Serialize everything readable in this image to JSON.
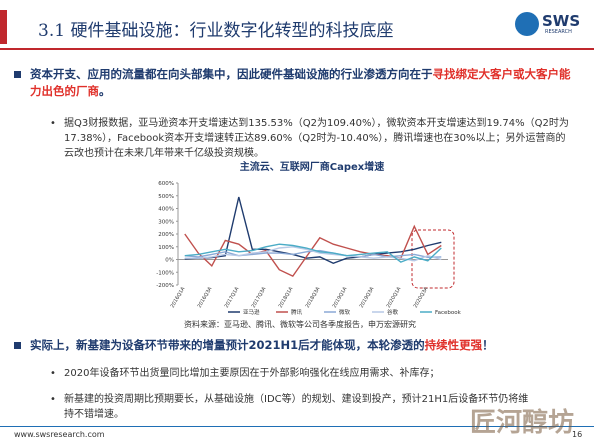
{
  "header": {
    "title": "3.1 硬件基础设施：行业数字化转型的科技底座",
    "logo": "SWS",
    "logo_sub": "RESEARCH"
  },
  "bullet1": {
    "parts": [
      "资本开支、应用的流量都在向头部集中，因此硬件基础设施的行业渗透方向在于",
      "寻找绑定大客户或大客户能力出色的厂商",
      "。"
    ],
    "sub": [
      "据Q3财报数据，亚马逊资本开支增速达到135.53%（Q2为109.40%），微软资本开支增速达到19.74%（Q2时为17.38%），Facebook资本开支增速转正达89.60%（Q2时为-10.40%），腾讯增速也在30%以上；另外运营商的云改也预计在未来几年带来千亿级投资规模。"
    ]
  },
  "chart_data": {
    "type": "line",
    "title": "主流云、互联网厂商Capex增速",
    "categories": [
      "2016Q1A",
      null,
      "2016Q3A",
      null,
      "2017Q1A",
      null,
      "2017Q3A",
      null,
      "2018Q1A",
      null,
      "2018Q3A",
      null,
      "2019Q1A",
      null,
      "2019Q3A",
      null,
      "2020Q1A",
      null,
      "2020Q3A",
      null
    ],
    "ylim": [
      -200,
      600
    ],
    "yticks": [
      {
        "value": -200,
        "label": "-200%"
      },
      {
        "value": -100,
        "label": "-100%"
      },
      {
        "value": 0,
        "label": "0%"
      },
      {
        "value": 100,
        "label": "100%"
      },
      {
        "value": 200,
        "label": "200%"
      },
      {
        "value": 300,
        "label": "300%"
      },
      {
        "value": 400,
        "label": "400%"
      },
      {
        "value": 500,
        "label": "500%"
      },
      {
        "value": 600,
        "label": "600%"
      }
    ],
    "series": [
      {
        "name": "亚马逊",
        "color": "#1f3b6e",
        "values": [
          5,
          10,
          15,
          30,
          490,
          80,
          80,
          60,
          40,
          10,
          20,
          -30,
          10,
          20,
          40,
          50,
          60,
          80,
          110,
          135
        ]
      },
      {
        "name": "腾讯",
        "color": "#c0504d",
        "values": [
          200,
          50,
          -50,
          150,
          120,
          40,
          70,
          -80,
          -130,
          20,
          170,
          120,
          90,
          60,
          40,
          30,
          10,
          260,
          40,
          110
        ]
      },
      {
        "name": "微软",
        "color": "#8aa9d6",
        "values": [
          30,
          20,
          40,
          60,
          30,
          40,
          50,
          50,
          40,
          60,
          70,
          50,
          30,
          20,
          40,
          20,
          30,
          40,
          17,
          20
        ]
      },
      {
        "name": "谷歌",
        "color": "#b7c9e6",
        "values": [
          10,
          10,
          20,
          40,
          30,
          50,
          60,
          90,
          100,
          80,
          50,
          40,
          30,
          20,
          10,
          20,
          10,
          -10,
          30,
          0
        ]
      },
      {
        "name": "Facebook",
        "color": "#4bacc6",
        "values": [
          30,
          40,
          60,
          80,
          60,
          70,
          100,
          120,
          110,
          90,
          60,
          50,
          30,
          40,
          50,
          60,
          -20,
          20,
          -10,
          90
        ]
      }
    ],
    "source": "资料来源：亚马逊、腾讯、微软等公司各季度报告，申万宏源研究"
  },
  "bullet2": {
    "parts": [
      "实际上，新基建为设备环节带来的增量预计2021H1后才能体现，本轮渗透的",
      "持续性更强",
      "！"
    ],
    "sub": [
      "2020年设备环节出货量同比增加主要原因在于外部影响强化在线应用需求、补库存；",
      "新基建的投资周期比预期要长，从基础设施（IDC等）的规划、建设到投产，预计21H1后设备环节仍将维持不错增速。"
    ]
  },
  "footer": {
    "url": "www.swsresearch.com",
    "page": "16"
  },
  "watermark": "匠河醇坊"
}
